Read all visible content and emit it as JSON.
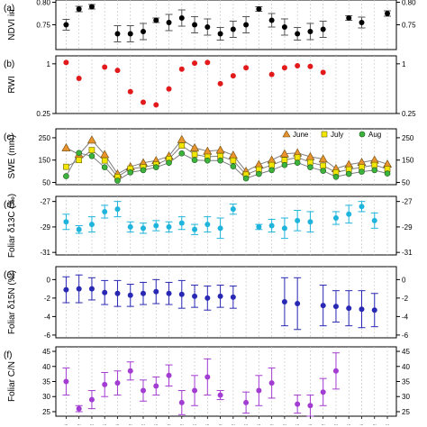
{
  "figure": {
    "x_tick_labels": [
      "...",
      "...",
      "...",
      "...",
      "...",
      "...",
      "...",
      "...",
      "...",
      "...",
      "...",
      "...",
      "...",
      "...",
      "...",
      "...",
      "...",
      "...",
      "...",
      "...",
      "...",
      "...",
      "...",
      "...",
      "...",
      "..."
    ]
  },
  "chart_data": [
    {
      "panel": "(a)",
      "type": "scatter",
      "ylabel": "NDVI in",
      "yticks": [
        "0.75",
        "0.80"
      ],
      "ylim": [
        0.695,
        0.805
      ],
      "color": "#000000",
      "marker": "circle",
      "error_bars": true,
      "x": [
        1,
        2,
        3,
        4,
        5,
        6,
        7,
        8,
        9,
        10,
        11,
        12,
        13,
        14,
        15,
        16,
        17,
        18,
        19,
        20,
        21,
        22,
        23,
        24,
        25,
        26
      ],
      "values": [
        0.75,
        0.785,
        0.79,
        null,
        0.73,
        0.73,
        0.735,
        0.76,
        0.755,
        0.765,
        0.75,
        0.745,
        0.73,
        0.74,
        0.75,
        0.785,
        0.76,
        0.745,
        0.73,
        0.735,
        0.74,
        null,
        0.765,
        0.755,
        null,
        0.775
      ],
      "err": [
        0.012,
        0.006,
        0.005,
        null,
        0.018,
        0.018,
        0.018,
        0.005,
        0.018,
        0.018,
        0.018,
        0.018,
        0.014,
        0.018,
        0.018,
        0.005,
        0.015,
        0.018,
        0.014,
        0.018,
        0.018,
        null,
        0.005,
        0.012,
        null,
        0.006
      ]
    },
    {
      "panel": "(b)",
      "type": "scatter",
      "ylabel": "RWI",
      "yticks": [
        "0.25",
        "1"
      ],
      "ylim": [
        0.25,
        1.12
      ],
      "color": "#e31a1c",
      "marker": "circle",
      "x": [
        1,
        2,
        3,
        4,
        5,
        6,
        7,
        8,
        9,
        10,
        11,
        12,
        13,
        14,
        15,
        16,
        17,
        18,
        19,
        20,
        21,
        22,
        23,
        24,
        25,
        26
      ],
      "values": [
        1.02,
        0.78,
        null,
        0.95,
        0.9,
        0.58,
        0.42,
        0.38,
        0.62,
        0.92,
        1.01,
        1.02,
        0.7,
        0.82,
        0.94,
        null,
        0.84,
        0.94,
        0.97,
        0.96,
        0.87,
        null,
        null,
        null,
        null,
        null
      ]
    },
    {
      "panel": "(c)",
      "type": "line",
      "ylabel": "SWE (mm)",
      "yticks": [
        "50",
        "150",
        "250"
      ],
      "ylim": [
        40,
        290
      ],
      "legend_position": "top-right",
      "x": [
        1,
        2,
        3,
        4,
        5,
        6,
        7,
        8,
        9,
        10,
        11,
        12,
        13,
        14,
        15,
        16,
        17,
        18,
        19,
        20,
        21,
        22,
        23,
        24,
        25,
        26
      ],
      "series": [
        {
          "name": "June",
          "color": "#e8932c",
          "marker": "triangle",
          "values": [
            205,
            175,
            240,
            175,
            88,
            120,
            138,
            148,
            168,
            242,
            205,
            190,
            195,
            172,
            100,
            130,
            150,
            178,
            182,
            165,
            155,
            112,
            130,
            140,
            150,
            132
          ]
        },
        {
          "name": "July",
          "color": "#f2e600",
          "marker": "square",
          "values": [
            120,
            150,
            195,
            148,
            75,
            112,
            118,
            130,
            155,
            215,
            175,
            165,
            168,
            148,
            85,
            108,
            128,
            150,
            162,
            140,
            125,
            95,
            108,
            118,
            128,
            110
          ]
        },
        {
          "name": "Aug",
          "color": "#3cb43c",
          "marker": "circle",
          "values": [
            78,
            182,
            168,
            118,
            58,
            95,
            105,
            118,
            138,
            180,
            150,
            148,
            148,
            122,
            68,
            88,
            105,
            128,
            138,
            118,
            102,
            75,
            88,
            98,
            105,
            90
          ]
        }
      ]
    },
    {
      "panel": "(d)",
      "type": "scatter",
      "ylabel": "Foliar δ13C (‰)",
      "yticks": [
        "-27",
        "-29",
        "-31"
      ],
      "ylim": [
        -31.2,
        -26.6
      ],
      "color": "#1fb4dc",
      "marker": "circle",
      "error_bars": true,
      "x": [
        1,
        2,
        3,
        4,
        5,
        6,
        7,
        8,
        9,
        10,
        11,
        12,
        13,
        14,
        15,
        16,
        17,
        18,
        19,
        20,
        21,
        22,
        23,
        24,
        25,
        26
      ],
      "values": [
        -28.6,
        -29.2,
        -28.8,
        -27.8,
        -27.6,
        -29.0,
        -29.1,
        -28.9,
        -29.0,
        -28.7,
        -29.2,
        -28.8,
        -29.1,
        -27.6,
        null,
        -29.0,
        -28.9,
        -29.1,
        -28.5,
        -28.6,
        null,
        -28.3,
        -28.0,
        -27.4,
        -28.5,
        null
      ],
      "err": [
        0.6,
        0.3,
        0.6,
        0.5,
        0.6,
        0.4,
        0.4,
        0.4,
        0.4,
        0.5,
        0.4,
        0.6,
        0.8,
        0.4,
        null,
        0.2,
        0.5,
        0.8,
        0.8,
        0.8,
        null,
        0.5,
        0.7,
        0.4,
        0.6,
        null
      ]
    },
    {
      "panel": "(e)",
      "type": "scatter",
      "ylabel": "Foliar δ15N (‰)",
      "yticks": [
        "0",
        "-2",
        "-4",
        "-6"
      ],
      "ylim": [
        -6.3,
        1.4
      ],
      "color": "#2828b4",
      "marker": "circle",
      "error_bars": true,
      "x": [
        1,
        2,
        3,
        4,
        5,
        6,
        7,
        8,
        9,
        10,
        11,
        12,
        13,
        14,
        15,
        16,
        17,
        18,
        19,
        20,
        21,
        22,
        23,
        24,
        25,
        26
      ],
      "values": [
        -1.1,
        -1.0,
        -1.0,
        -1.4,
        -1.5,
        -1.7,
        -1.5,
        -1.3,
        -1.5,
        -1.6,
        -1.8,
        -2.0,
        -1.8,
        -1.9,
        null,
        null,
        null,
        -2.4,
        -2.6,
        null,
        -2.8,
        -2.9,
        -3.1,
        -3.2,
        -3.3,
        null
      ],
      "err": [
        1.4,
        1.5,
        1.2,
        1.3,
        1.4,
        1.2,
        1.2,
        1.3,
        1.2,
        1.5,
        1.2,
        1.3,
        1.2,
        1.2,
        null,
        null,
        null,
        2.6,
        2.8,
        null,
        2.2,
        1.7,
        1.9,
        2.0,
        1.8,
        null
      ]
    },
    {
      "panel": "(f)",
      "type": "scatter",
      "ylabel": "Foliar C/N",
      "yticks": [
        "45",
        "40",
        "35",
        "30",
        "25"
      ],
      "ylim": [
        23.5,
        46.5
      ],
      "color": "#a33cd2",
      "marker": "circle",
      "error_bars": true,
      "x": [
        1,
        2,
        3,
        4,
        5,
        6,
        7,
        8,
        9,
        10,
        11,
        12,
        13,
        14,
        15,
        16,
        17,
        18,
        19,
        20,
        21,
        22,
        23,
        24,
        25,
        26
      ],
      "values": [
        35.0,
        26.0,
        29.0,
        34.0,
        34.5,
        38.5,
        32.0,
        33.5,
        37.0,
        28.0,
        32.0,
        36.5,
        30.5,
        null,
        28.0,
        32.0,
        34.5,
        null,
        27.5,
        27.0,
        31.5,
        38.5,
        null,
        null,
        null,
        null
      ],
      "err": [
        4.5,
        1.0,
        3.0,
        4.0,
        4.0,
        3.0,
        3.5,
        3.0,
        3.5,
        4.0,
        5.0,
        6.0,
        1.5,
        null,
        3.5,
        5.0,
        5.0,
        null,
        3.0,
        3.5,
        4.5,
        6.0,
        null,
        null,
        null,
        null
      ]
    }
  ]
}
